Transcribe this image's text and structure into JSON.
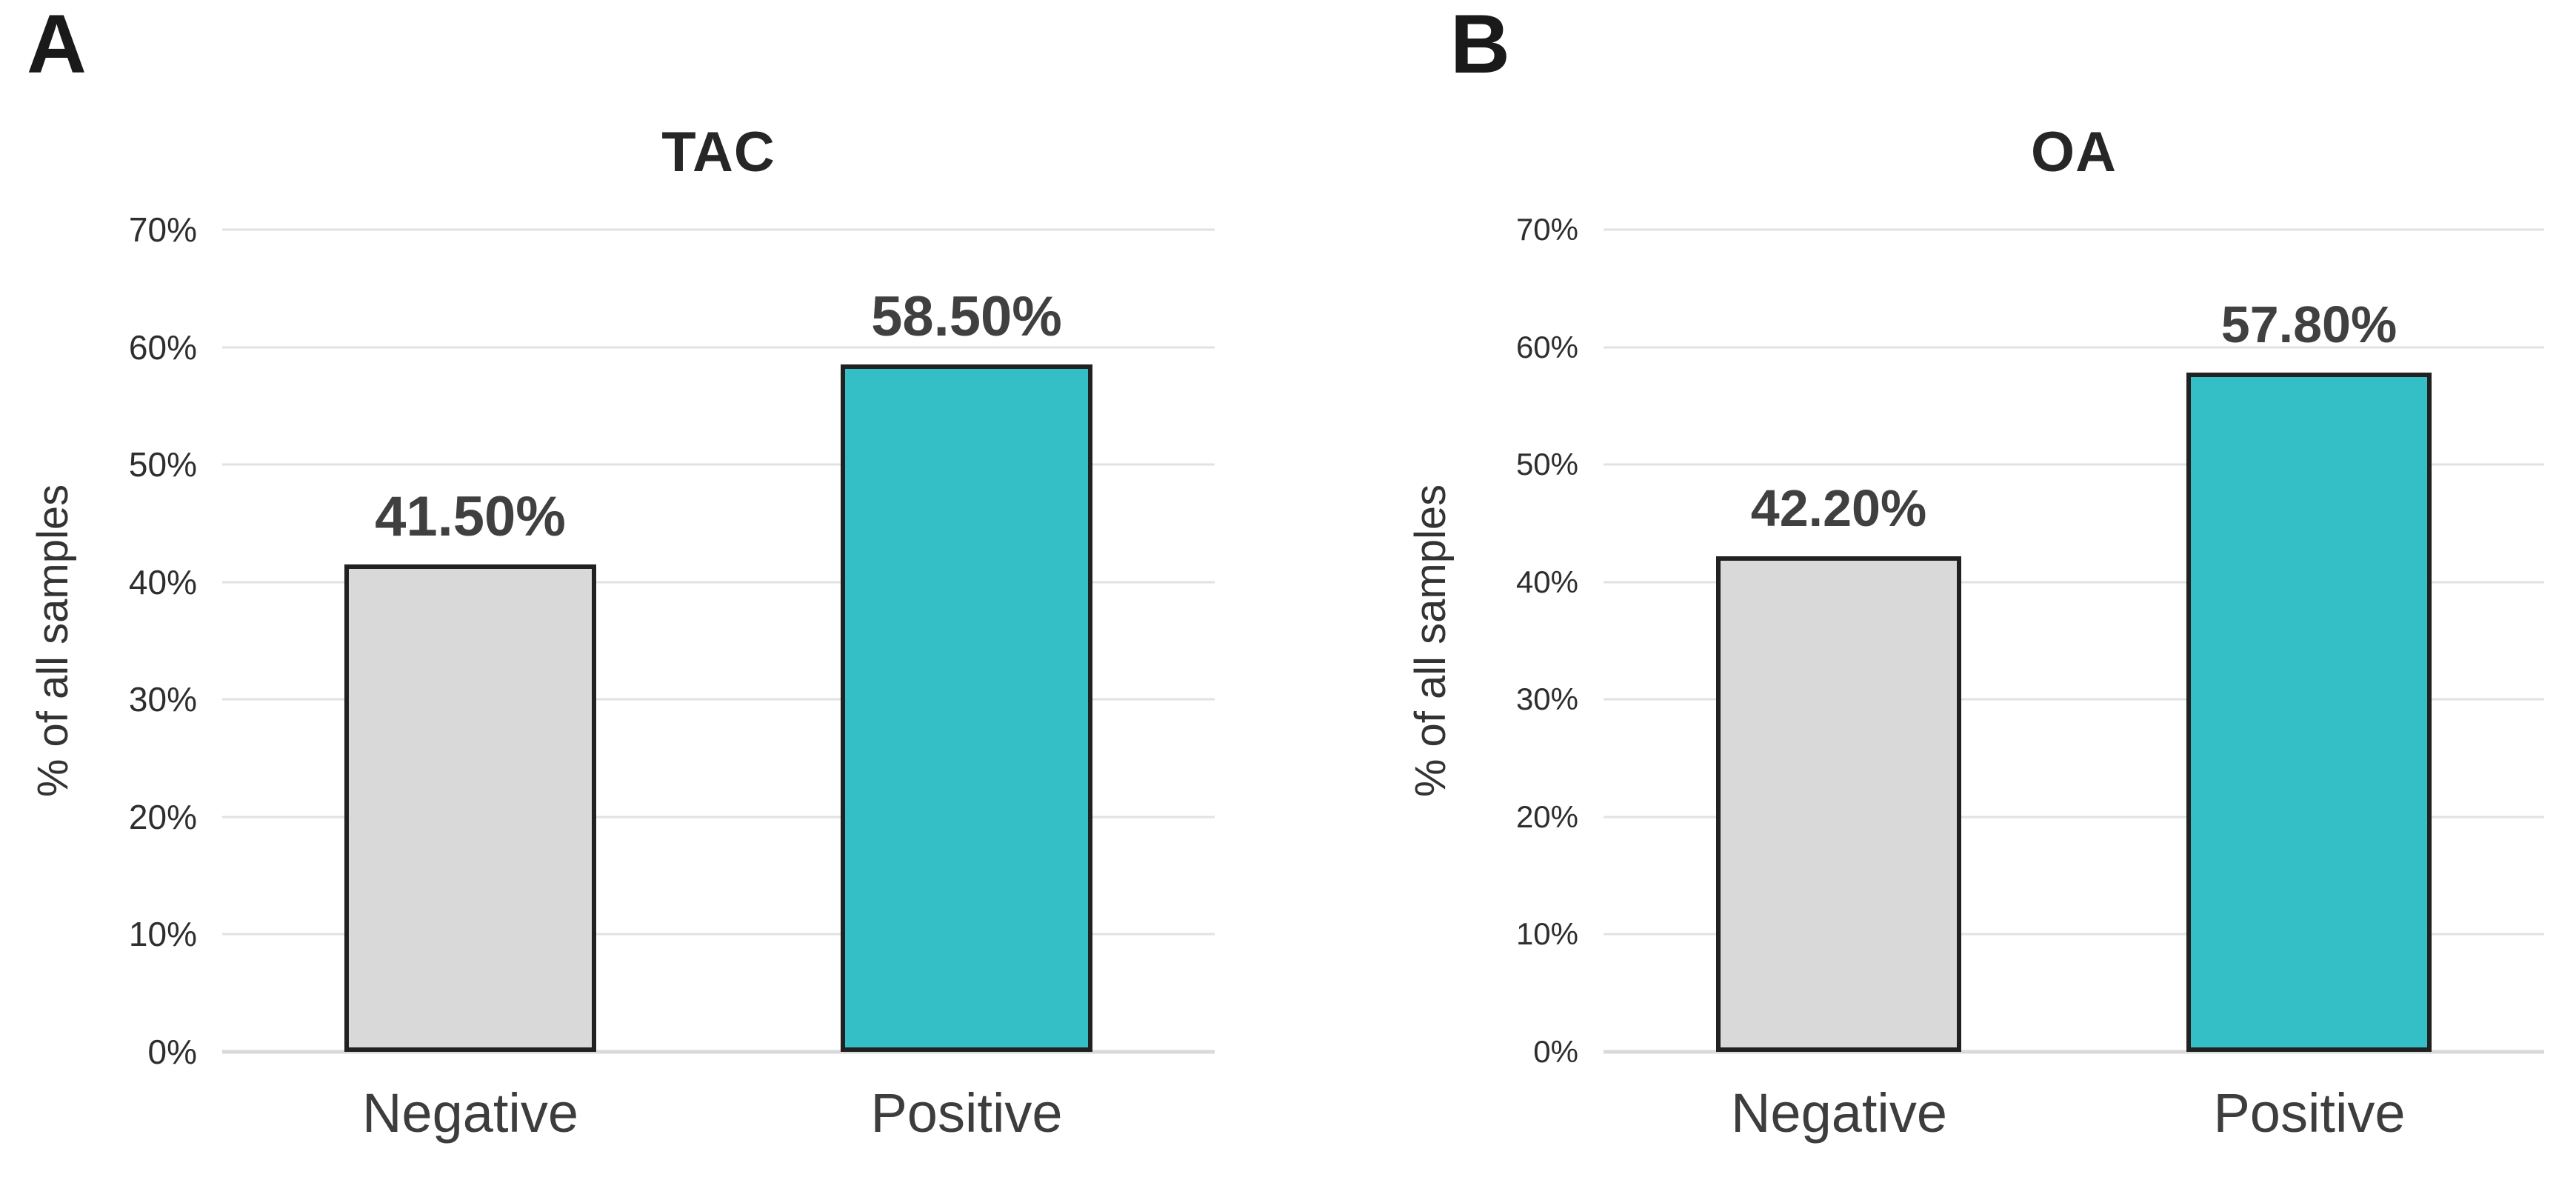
{
  "figure": {
    "background": "#ffffff",
    "panel_count": 2
  },
  "chart_data": [
    {
      "type": "bar",
      "panel_label": "A",
      "title": "TAC",
      "xlabel": "",
      "ylabel": "% of all samples",
      "categories": [
        "Negative",
        "Positive"
      ],
      "values": [
        41.5,
        58.5
      ],
      "value_labels": [
        "41.50%",
        "58.50%"
      ],
      "bar_colors": [
        "#d9d9d9",
        "#34bec5"
      ],
      "bar_border_color": "#212121",
      "value_label_color": "#404040",
      "ylim": [
        0,
        70
      ],
      "ytick_step": 10,
      "ytick_labels": [
        "0%",
        "10%",
        "20%",
        "30%",
        "40%",
        "50%",
        "60%",
        "70%"
      ],
      "grid": true,
      "gridline_color": "#e2e2e2",
      "legend": false
    },
    {
      "type": "bar",
      "panel_label": "B",
      "title": "OA",
      "xlabel": "",
      "ylabel": "% of all samples",
      "categories": [
        "Negative",
        "Positive"
      ],
      "values": [
        42.2,
        57.8
      ],
      "value_labels": [
        "42.20%",
        "57.80%"
      ],
      "bar_colors": [
        "#d9d9d9",
        "#34bec5"
      ],
      "bar_border_color": "#212121",
      "value_label_color": "#404040",
      "ylim": [
        0,
        70
      ],
      "ytick_step": 10,
      "ytick_labels": [
        "0%",
        "10%",
        "20%",
        "30%",
        "40%",
        "50%",
        "60%",
        "70%"
      ],
      "grid": true,
      "gridline_color": "#e2e2e2",
      "legend": false
    }
  ]
}
